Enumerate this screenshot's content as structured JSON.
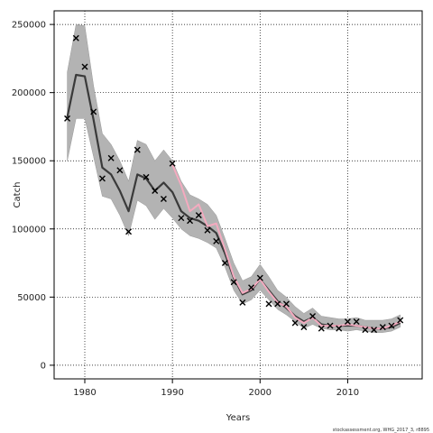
{
  "chart_data": {
    "type": "line",
    "xlabel": "Years",
    "ylabel": "Catch",
    "caption": "stockassessment.org, WHG_2017_3, r8895",
    "xlim": [
      1976.5,
      2018.5
    ],
    "ylim": [
      -10000,
      260000
    ],
    "x_ticks": [
      1980,
      1990,
      2000,
      2010
    ],
    "y_ticks": [
      0,
      50000,
      100000,
      150000,
      200000,
      250000
    ],
    "y_tick_labels": [
      "0",
      "50000",
      "100000",
      "150000",
      "200000",
      "250000"
    ],
    "grid": true,
    "colors": {
      "band": "#b3b3b3",
      "estimate": "#3a3a3a",
      "retro": "#f4aabf",
      "observed": "#000000"
    },
    "series": [
      {
        "kind": "band",
        "x": [
          1978,
          1979,
          1980,
          1981,
          1982,
          1983,
          1984,
          1985,
          1986,
          1987,
          1988,
          1989,
          1990,
          1991,
          1992,
          1993,
          1994,
          1995,
          1996,
          1997,
          1998,
          1999,
          2000,
          2001,
          2002,
          2003,
          2004,
          2005,
          2006,
          2007,
          2008,
          2009,
          2010,
          2011,
          2012,
          2013,
          2014,
          2015,
          2016
        ],
        "upper": [
          215000,
          250000,
          249000,
          205000,
          170000,
          162000,
          150000,
          135000,
          165000,
          162000,
          150000,
          158000,
          150000,
          135000,
          125000,
          122000,
          118000,
          110000,
          93000,
          75000,
          62000,
          65000,
          74000,
          65000,
          55000,
          50000,
          43000,
          38000,
          42000,
          36000,
          35000,
          34000,
          34000,
          35000,
          33000,
          33000,
          33000,
          34000,
          37000
        ],
        "lower": [
          150000,
          181000,
          181000,
          153000,
          124000,
          122000,
          110000,
          95000,
          121000,
          117000,
          107000,
          115000,
          108000,
          100000,
          95000,
          93000,
          90000,
          86000,
          72000,
          55000,
          45000,
          48000,
          55000,
          48000,
          41000,
          37000,
          32000,
          27000,
          30000,
          27000,
          26000,
          26000,
          25000,
          26000,
          25000,
          24000,
          24000,
          25000,
          28000
        ]
      },
      {
        "kind": "line",
        "x": [
          1978,
          1979,
          1980,
          1981,
          1982,
          1983,
          1984,
          1985,
          1986,
          1987,
          1988,
          1989,
          1990,
          1991,
          1992,
          1993,
          1994,
          1995,
          1996,
          1997,
          1998,
          1999,
          2000,
          2001,
          2002,
          2003,
          2004,
          2005,
          2006,
          2007,
          2008,
          2009,
          2010,
          2011,
          2012,
          2013,
          2014,
          2015,
          2016
        ],
        "y": [
          182000,
          213000,
          212000,
          180000,
          145000,
          140000,
          128000,
          113000,
          140000,
          137000,
          128000,
          134000,
          127000,
          113000,
          108000,
          106000,
          102000,
          97000,
          82000,
          64000,
          52000,
          55000,
          63000,
          55000,
          47000,
          42000,
          36000,
          32000,
          35000,
          30000,
          29000,
          29000,
          29000,
          29000,
          28000,
          27000,
          27000,
          28000,
          31000
        ]
      },
      {
        "kind": "line",
        "x": [
          1990,
          1991,
          1992,
          1993,
          1994,
          1995,
          1996,
          1997,
          1998,
          1999,
          2000,
          2001,
          2002,
          2003,
          2004,
          2005,
          2006,
          2007,
          2008,
          2009,
          2010,
          2011,
          2012,
          2013,
          2014,
          2015,
          2016
        ],
        "y": [
          147000,
          132000,
          113000,
          118000,
          102000,
          104000,
          85000,
          65000,
          53000,
          56000,
          63000,
          54000,
          46000,
          43000,
          35000,
          31000,
          35000,
          29000,
          29000,
          29000,
          30000,
          29000,
          28000,
          27000,
          27000,
          29000,
          32000
        ]
      },
      {
        "kind": "points",
        "x": [
          1978,
          1979,
          1980,
          1981,
          1982,
          1983,
          1984,
          1985,
          1986,
          1987,
          1988,
          1989,
          1990,
          1991,
          1992,
          1993,
          1994,
          1995,
          1996,
          1997,
          1998,
          1999,
          2000,
          2001,
          2002,
          2003,
          2004,
          2005,
          2006,
          2007,
          2008,
          2009,
          2010,
          2011,
          2012,
          2013,
          2014,
          2015,
          2016
        ],
        "y": [
          181000,
          240000,
          219000,
          186000,
          137000,
          152000,
          143000,
          98000,
          158000,
          138000,
          128000,
          122000,
          148000,
          108000,
          106000,
          110000,
          99000,
          91000,
          75000,
          61000,
          46000,
          57000,
          64000,
          45000,
          45000,
          45000,
          31000,
          28000,
          36000,
          27000,
          29000,
          27000,
          32000,
          32000,
          26000,
          26000,
          28000,
          29000,
          33000
        ]
      }
    ]
  }
}
